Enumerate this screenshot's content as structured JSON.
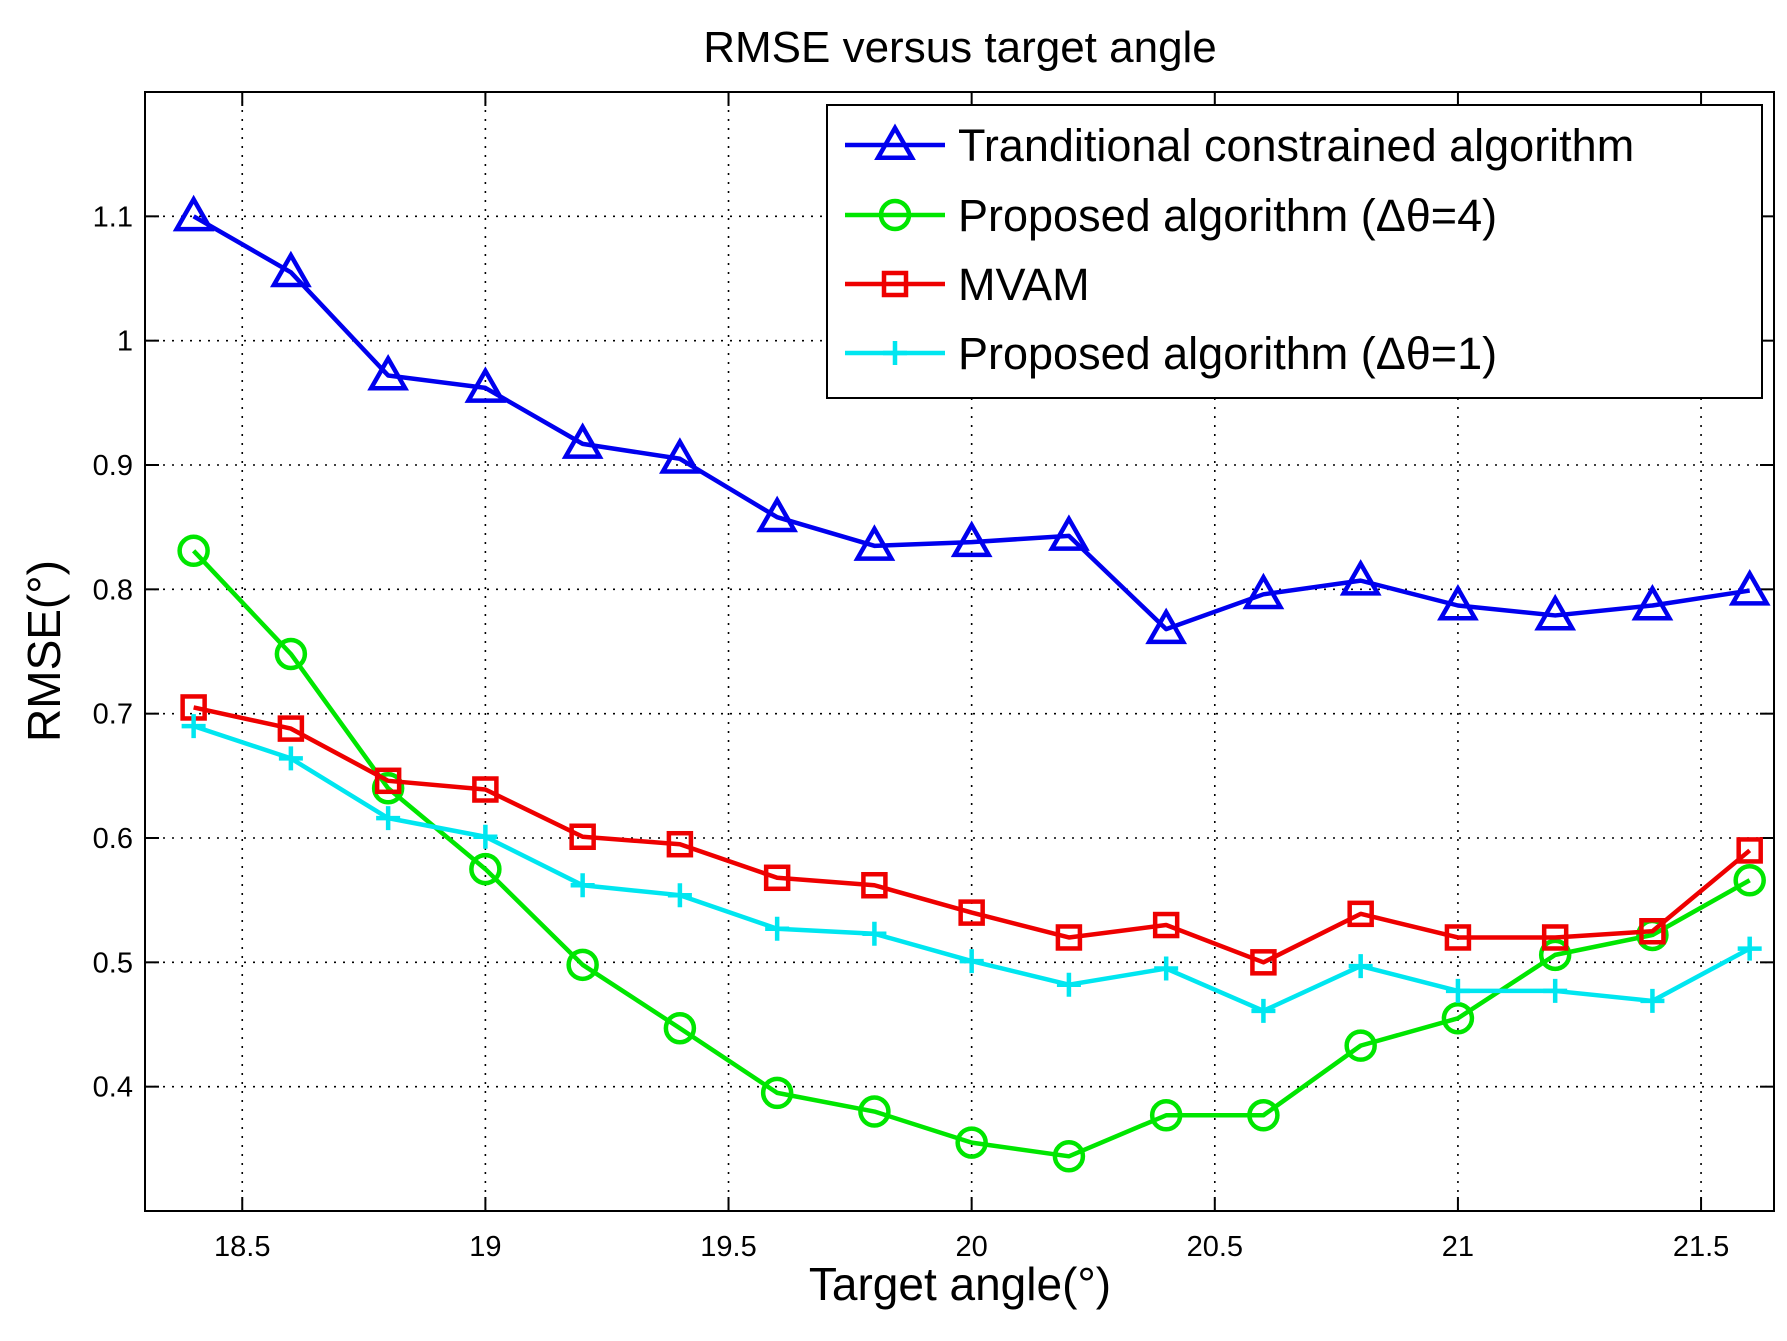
{
  "chart_data": {
    "type": "line",
    "title": "RMSE versus target angle",
    "xlabel": "Target angle(°)",
    "ylabel": "RMSE(°)",
    "xlim": [
      18.3,
      21.65
    ],
    "ylim": [
      0.3,
      1.2
    ],
    "grid": true,
    "legend_position": "top-right",
    "xticks": [
      18.5,
      19,
      19.5,
      20,
      20.5,
      21,
      21.5
    ],
    "xtick_labels": [
      "18.5",
      "19",
      "19.5",
      "20",
      "20.5",
      "21",
      "21.5"
    ],
    "yticks": [
      0.4,
      0.5,
      0.6,
      0.7,
      0.8,
      0.9,
      1.0,
      1.1
    ],
    "ytick_labels": [
      "0.4",
      "0.5",
      "0.6",
      "0.7",
      "0.8",
      "0.9",
      "1",
      "1.1"
    ],
    "x": [
      18.4,
      18.6,
      18.8,
      19.0,
      19.2,
      19.4,
      19.6,
      19.8,
      20.0,
      20.2,
      20.4,
      20.6,
      20.8,
      21.0,
      21.2,
      21.4,
      21.6
    ],
    "series": [
      {
        "name": "Tranditional constrained algorithm",
        "color": "#0000ee",
        "marker": "triangle",
        "values": [
          1.1,
          1.055,
          0.972,
          0.962,
          0.917,
          0.905,
          0.858,
          0.835,
          0.838,
          0.843,
          0.768,
          0.796,
          0.807,
          0.787,
          0.779,
          0.787,
          0.799
        ]
      },
      {
        "name": "Proposed algorithm (Δθ=4)",
        "color": "#00e600",
        "marker": "circle",
        "values": [
          0.831,
          0.748,
          0.64,
          0.575,
          0.498,
          0.447,
          0.395,
          0.38,
          0.355,
          0.344,
          0.377,
          0.377,
          0.433,
          0.455,
          0.506,
          0.522,
          0.566
        ]
      },
      {
        "name": "MVAM",
        "color": "#ee0000",
        "marker": "square",
        "values": [
          0.705,
          0.688,
          0.646,
          0.639,
          0.601,
          0.595,
          0.568,
          0.562,
          0.54,
          0.52,
          0.53,
          0.5,
          0.539,
          0.52,
          0.52,
          0.525,
          0.59
        ]
      },
      {
        "name": "Proposed algorithm (Δθ=1)",
        "color": "#00e6f0",
        "marker": "plus",
        "values": [
          0.69,
          0.664,
          0.616,
          0.601,
          0.562,
          0.554,
          0.527,
          0.523,
          0.501,
          0.482,
          0.495,
          0.461,
          0.497,
          0.477,
          0.477,
          0.469,
          0.511
        ]
      }
    ]
  }
}
